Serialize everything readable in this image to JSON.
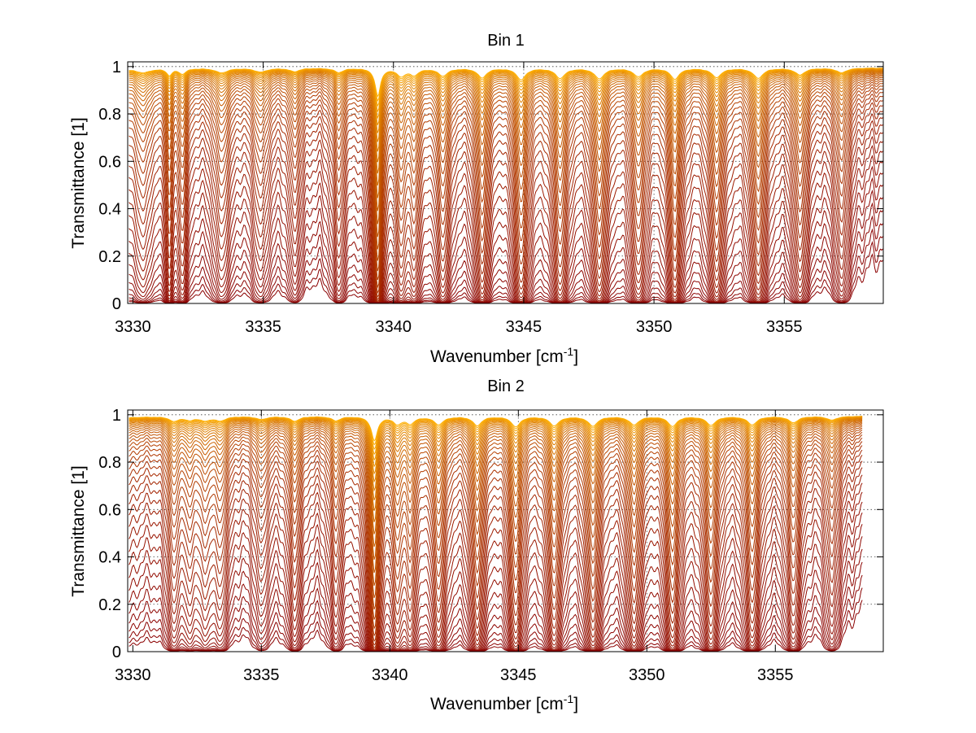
{
  "chart_data": [
    {
      "type": "line",
      "title": "Bin 1",
      "xlabel_main": "Wavenumber [cm",
      "xlabel_sup": "-1",
      "xlabel_end": "]",
      "ylabel": "Transmittance [1]",
      "xlim": [
        3329.8,
        3358.8
      ],
      "ylim": [
        0,
        1.02
      ],
      "xticks": [
        3330,
        3335,
        3340,
        3345,
        3350,
        3355
      ],
      "xtick_labels": [
        "3330",
        "3335",
        "3340",
        "3345",
        "3350",
        "3355"
      ],
      "yticks": [
        0,
        0.2,
        0.4,
        0.6,
        0.8,
        1
      ],
      "ytick_labels": [
        "0",
        "0.2",
        "0.4",
        "0.6",
        "0.8",
        "1"
      ],
      "grid": true,
      "x_end": 3358.8,
      "n_series": 40,
      "color_low": "#8b0000",
      "color_high": "#ffb000",
      "absorption_lines": [
        {
          "center": 3330.4,
          "depth": 0.9,
          "width": 0.3
        },
        {
          "center": 3331.4,
          "depth": 1.6,
          "width": 0.12
        },
        {
          "center": 3331.9,
          "depth": 1.3,
          "width": 0.16
        },
        {
          "center": 3333.4,
          "depth": 1.1,
          "width": 0.28
        },
        {
          "center": 3334.9,
          "depth": 0.9,
          "width": 0.28
        },
        {
          "center": 3336.2,
          "depth": 0.8,
          "width": 0.22
        },
        {
          "center": 3337.9,
          "depth": 1.0,
          "width": 0.2
        },
        {
          "center": 3339.4,
          "depth": 7.0,
          "width": 0.12
        },
        {
          "center": 3340.3,
          "depth": 1.8,
          "width": 0.2
        },
        {
          "center": 3340.8,
          "depth": 1.5,
          "width": 0.2
        },
        {
          "center": 3341.9,
          "depth": 1.8,
          "width": 0.22
        },
        {
          "center": 3343.4,
          "depth": 2.3,
          "width": 0.2
        },
        {
          "center": 3344.9,
          "depth": 2.8,
          "width": 0.2
        },
        {
          "center": 3346.4,
          "depth": 2.4,
          "width": 0.22
        },
        {
          "center": 3347.9,
          "depth": 2.5,
          "width": 0.22
        },
        {
          "center": 3349.4,
          "depth": 2.0,
          "width": 0.22
        },
        {
          "center": 3350.8,
          "depth": 2.6,
          "width": 0.2
        },
        {
          "center": 3352.4,
          "depth": 2.2,
          "width": 0.22
        },
        {
          "center": 3354.0,
          "depth": 2.4,
          "width": 0.22
        },
        {
          "center": 3355.6,
          "depth": 1.6,
          "width": 0.22
        },
        {
          "center": 3357.2,
          "depth": 1.1,
          "width": 0.22
        }
      ]
    },
    {
      "type": "line",
      "title": "Bin 2",
      "xlabel_main": "Wavenumber [cm",
      "xlabel_sup": "-1",
      "xlabel_end": "]",
      "ylabel": "Transmittance [1]",
      "xlim": [
        3329.8,
        3359.2
      ],
      "ylim": [
        0,
        1.02
      ],
      "xticks": [
        3330,
        3335,
        3340,
        3345,
        3350,
        3355
      ],
      "xtick_labels": [
        "3330",
        "3335",
        "3340",
        "3345",
        "3350",
        "3355"
      ],
      "yticks": [
        0,
        0.2,
        0.4,
        0.6,
        0.8,
        1
      ],
      "ytick_labels": [
        "0",
        "0.2",
        "0.4",
        "0.6",
        "0.8",
        "1"
      ],
      "grid": true,
      "x_end": 3358.4,
      "n_series": 40,
      "color_low": "#8b0000",
      "color_high": "#ffb000",
      "absorption_lines": [
        {
          "center": 3331.6,
          "depth": 1.1,
          "width": 0.2
        },
        {
          "center": 3332.2,
          "depth": 0.8,
          "width": 0.2
        },
        {
          "center": 3332.8,
          "depth": 0.9,
          "width": 0.25
        },
        {
          "center": 3333.4,
          "depth": 1.0,
          "width": 0.25
        },
        {
          "center": 3335.0,
          "depth": 0.7,
          "width": 0.25
        },
        {
          "center": 3336.3,
          "depth": 1.1,
          "width": 0.22
        },
        {
          "center": 3337.9,
          "depth": 1.0,
          "width": 0.2
        },
        {
          "center": 3339.4,
          "depth": 6.0,
          "width": 0.14
        },
        {
          "center": 3340.3,
          "depth": 1.7,
          "width": 0.2
        },
        {
          "center": 3340.8,
          "depth": 1.6,
          "width": 0.2
        },
        {
          "center": 3341.9,
          "depth": 1.9,
          "width": 0.22
        },
        {
          "center": 3343.4,
          "depth": 2.2,
          "width": 0.2
        },
        {
          "center": 3344.9,
          "depth": 2.5,
          "width": 0.2
        },
        {
          "center": 3346.4,
          "depth": 2.2,
          "width": 0.22
        },
        {
          "center": 3347.9,
          "depth": 2.3,
          "width": 0.22
        },
        {
          "center": 3349.5,
          "depth": 2.0,
          "width": 0.22
        },
        {
          "center": 3351.0,
          "depth": 2.4,
          "width": 0.2
        },
        {
          "center": 3352.5,
          "depth": 2.1,
          "width": 0.22
        },
        {
          "center": 3354.1,
          "depth": 2.0,
          "width": 0.22
        },
        {
          "center": 3355.7,
          "depth": 1.5,
          "width": 0.22
        },
        {
          "center": 3357.2,
          "depth": 0.9,
          "width": 0.22
        }
      ]
    }
  ]
}
